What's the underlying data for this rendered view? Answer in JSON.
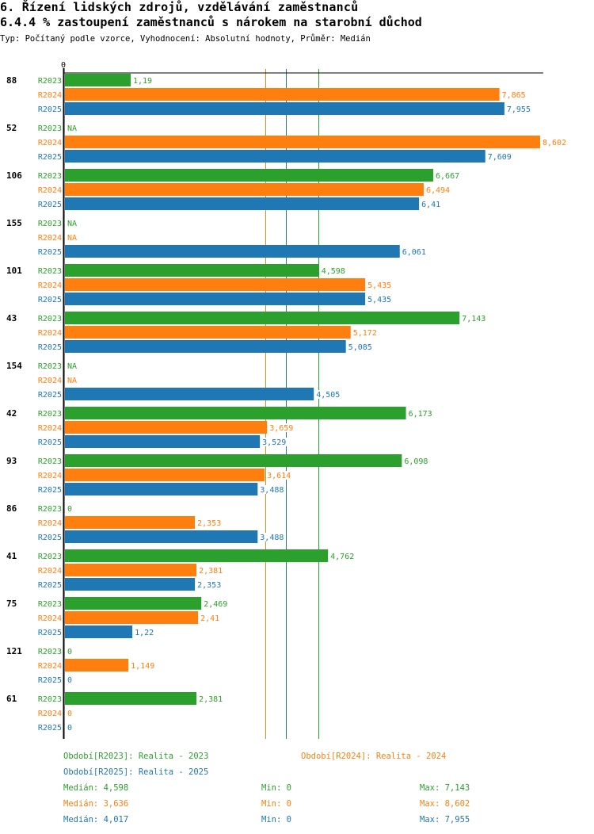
{
  "header": {
    "title": "6. Řízení lidských zdrojů, vzdělávání zaměstnanců",
    "subtitle": "6.4.4 % zastoupení zaměstnanců s nárokem na starobní důchod",
    "info": "Typ: Počítaný podle vzorce, Vyhodnocení: Absolutní hodnoty, Průměr: Medián"
  },
  "colors": {
    "R2023": "#2ca02c",
    "R2024": "#ff7f0e",
    "R2025": "#1f77b4",
    "axis": "#000000"
  },
  "chart_data": {
    "type": "bar",
    "orientation": "horizontal",
    "title": "6.4.4 % zastoupení zaměstnanců s nárokem na starobní důchod",
    "xlabel": "",
    "ylabel": "",
    "x_tick_labels": [
      "0"
    ],
    "xlim": [
      0,
      8.602
    ],
    "grid": false,
    "categories": [
      "88",
      "52",
      "106",
      "155",
      "101",
      "43",
      "154",
      "42",
      "93",
      "86",
      "41",
      "75",
      "121",
      "61"
    ],
    "series": [
      {
        "name": "R2023",
        "values": [
          1.19,
          null,
          6.667,
          null,
          4.598,
          7.143,
          null,
          6.173,
          6.098,
          0,
          4.762,
          2.469,
          0,
          2.381
        ],
        "labels": [
          "1,19",
          "NA",
          "6,667",
          "NA",
          "4,598",
          "7,143",
          "NA",
          "6,173",
          "6,098",
          "0",
          "4,762",
          "2,469",
          "0",
          "2,381"
        ]
      },
      {
        "name": "R2024",
        "values": [
          7.865,
          8.602,
          6.494,
          null,
          5.435,
          5.172,
          null,
          3.659,
          3.614,
          2.353,
          2.381,
          2.41,
          1.149,
          0
        ],
        "labels": [
          "7,865",
          "8,602",
          "6,494",
          "NA",
          "5,435",
          "5,172",
          "NA",
          "3,659",
          "3,614",
          "2,353",
          "2,381",
          "2,41",
          "1,149",
          "0"
        ]
      },
      {
        "name": "R2025",
        "values": [
          7.955,
          7.609,
          6.41,
          6.061,
          5.435,
          5.085,
          4.505,
          3.529,
          3.488,
          3.488,
          2.353,
          1.22,
          0,
          0
        ],
        "labels": [
          "7,955",
          "7,609",
          "6,41",
          "6,061",
          "5,435",
          "5,085",
          "4,505",
          "3,529",
          "3,488",
          "3,488",
          "2,353",
          "1,22",
          "0",
          "0"
        ]
      }
    ],
    "medians": [
      {
        "series": "R2023",
        "value": 4.598
      },
      {
        "series": "R2024",
        "value": 3.636
      },
      {
        "series": "R2025",
        "value": 4.017
      }
    ],
    "legend": {
      "position": "bottom",
      "periods": [
        {
          "series": "R2023",
          "text": "Období[R2023]: Realita - 2023"
        },
        {
          "series": "R2024",
          "text": "Období[R2024]: Realita - 2024"
        },
        {
          "series": "R2025",
          "text": "Období[R2025]: Realita - 2025"
        }
      ],
      "stats": [
        {
          "series": "R2023",
          "median": "Medián: 4,598",
          "min": "Min: 0",
          "max": "Max: 7,143"
        },
        {
          "series": "R2024",
          "median": "Medián: 3,636",
          "min": "Min: 0",
          "max": "Max: 8,602"
        },
        {
          "series": "R2025",
          "median": "Medián: 4,017",
          "min": "Min: 0",
          "max": "Max: 7,955"
        }
      ]
    }
  }
}
